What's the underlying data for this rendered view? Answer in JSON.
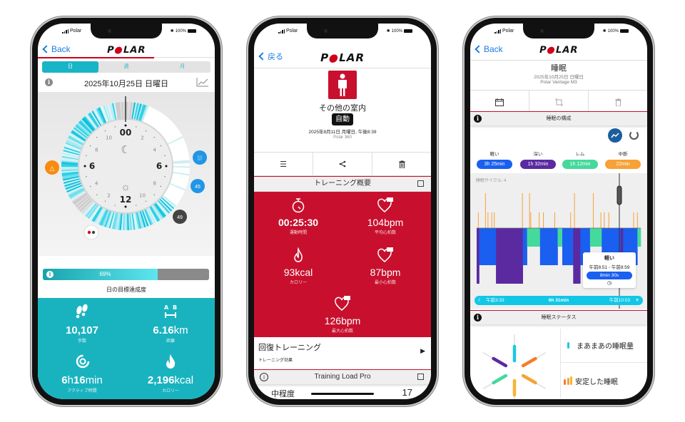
{
  "status_bar": {
    "carrier": "Polar",
    "battery": "100%"
  },
  "logo": "POLAR",
  "phone1": {
    "back": "Back",
    "tabs": [
      {
        "label": "日",
        "active": true
      },
      {
        "label": "週",
        "active": false
      },
      {
        "label": "月",
        "active": false
      }
    ],
    "date": "2025年10月25日 日曜日",
    "clock": {
      "top": "00",
      "bottom": "12",
      "left": "6",
      "right": "6",
      "minor": [
        "10",
        "8",
        "4",
        "2",
        "2",
        "4",
        "8",
        "10"
      ],
      "markers": {
        "inactivity_alert": "!",
        "sleep": "bed",
        "heart_45": "45",
        "heart_49": "49"
      }
    },
    "goal": {
      "percent": 69,
      "label": "69%",
      "caption": "日の目標達成度"
    },
    "stats": [
      {
        "icon": "footsteps-icon",
        "value": "10,107",
        "unit": "",
        "label": "歩数"
      },
      {
        "icon": "distance-icon",
        "value": "6.16",
        "unit": "km",
        "label": "距離"
      },
      {
        "icon": "active-time-icon",
        "value_parts": [
          "6",
          "h",
          "16",
          "min"
        ],
        "label": "アクティブ時間"
      },
      {
        "icon": "flame-icon",
        "value": "2,196",
        "unit": "kcal",
        "label": "カロリー"
      }
    ],
    "colors": {
      "teal": "#19b3bf",
      "accent": "#d0021b"
    }
  },
  "phone2": {
    "back": "戻る",
    "sport": "その他の室内",
    "badge": "自動",
    "datetime": "2025年8月11日 月曜日, 午後8:39",
    "device": "Polar 360",
    "summary_title": "トレーニング概要",
    "metrics": [
      {
        "icon": "stopwatch-icon",
        "value": "00:25:30",
        "unit": "",
        "label": "運動時間"
      },
      {
        "icon": "heart-avg-icon",
        "tag": "平均",
        "value": "104",
        "unit": "bpm",
        "label": "平均心拍数"
      },
      {
        "icon": "flame-icon",
        "value": "93",
        "unit": "kcal",
        "label": "カロリー"
      },
      {
        "icon": "heart-min-icon",
        "tag": "最小",
        "value": "87",
        "unit": "bpm",
        "label": "最小心拍数"
      },
      {
        "icon": "heart-max-icon",
        "tag": "最大",
        "value": "126",
        "unit": "bpm",
        "label": "最大心拍数"
      }
    ],
    "benefit": {
      "title": "回復トレーニング",
      "subtitle": "トレーニング効果"
    },
    "load_title": "Training Load Pro",
    "load_row": {
      "label": "中程度",
      "value": "17"
    },
    "colors": {
      "red": "#c8102e"
    }
  },
  "phone3": {
    "back": "Back",
    "title": "睡眠",
    "date": "2025年10月25日 日曜日",
    "device": "Polar Vantage M3",
    "structure_title": "睡眠の構成",
    "stages": [
      {
        "key": "light",
        "label": "軽い",
        "duration": "3h 25min",
        "color": "#1a5ff0"
      },
      {
        "key": "deep",
        "label": "深い",
        "duration": "1h 32min",
        "color": "#5b2aa0"
      },
      {
        "key": "rem",
        "label": "レム",
        "duration": "1h 12min",
        "color": "#45d99c"
      },
      {
        "key": "wake",
        "label": "中断",
        "duration": "22min",
        "color": "#f7a136"
      }
    ],
    "cycles": "睡眠サイクル: 4",
    "hypnogram_min": [
      [
        "deep",
        6
      ],
      [
        "light",
        40
      ],
      [
        "deep",
        64
      ],
      [
        "light",
        10
      ],
      [
        "rem",
        31
      ],
      [
        "light",
        42
      ],
      [
        "rem",
        11
      ],
      [
        "light",
        26
      ],
      [
        "deep",
        17
      ],
      [
        "light",
        23
      ],
      [
        "rem",
        28
      ],
      [
        "light",
        45
      ],
      [
        "deep",
        6
      ],
      [
        "light",
        34
      ],
      [
        "rem",
        8
      ]
    ],
    "wake_marks_min": [
      4,
      21,
      27,
      36,
      42,
      109,
      126,
      129,
      149,
      159,
      186,
      224,
      233,
      278,
      296,
      304,
      315,
      374,
      383
    ],
    "wake_tall_min": [
      21,
      109,
      126,
      233,
      278
    ],
    "tooltip": {
      "stage": "軽い",
      "range": "午前8:51 - 午前8:59",
      "duration": "8min 30s"
    },
    "timeline": {
      "start": "午前3:33",
      "total": "6h 31min",
      "end": "午前10:03"
    },
    "status_title": "睡眠ステータス",
    "status_items": [
      {
        "label": "まあまあの睡眠量"
      },
      {
        "label": "安定した睡眠"
      }
    ]
  }
}
